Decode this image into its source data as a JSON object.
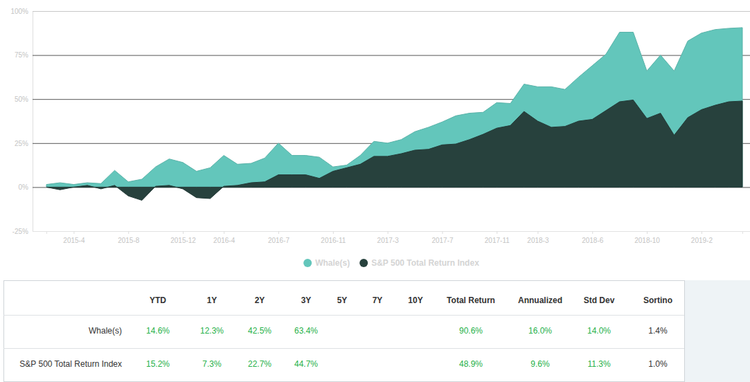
{
  "chart_data": {
    "type": "area",
    "categories": [
      null,
      null,
      "2015-4",
      null,
      null,
      null,
      "2015-8",
      null,
      null,
      null,
      "2015-12",
      null,
      null,
      "2016-4",
      null,
      null,
      null,
      "2016-7",
      null,
      null,
      null,
      "2016-11",
      null,
      null,
      null,
      "2017-3",
      null,
      null,
      null,
      "2017-7",
      null,
      null,
      null,
      "2017-11",
      null,
      null,
      "2018-3",
      null,
      null,
      null,
      "2018-6",
      null,
      null,
      null,
      "2018-10",
      null,
      null,
      null,
      "2019-2",
      null,
      null,
      null
    ],
    "series": [
      {
        "name": "Whale(s)",
        "color": "#63c6bb",
        "values": [
          1.5,
          2.5,
          1.5,
          2.5,
          2,
          9.5,
          3,
          4.5,
          11.5,
          16,
          14,
          9,
          11,
          18,
          13,
          13.5,
          16.5,
          25,
          18,
          18,
          17,
          11.5,
          12.5,
          18,
          26,
          25,
          27,
          31.5,
          34,
          37,
          40.5,
          42,
          42.5,
          48,
          47.5,
          58.5,
          57,
          57,
          55.5,
          62.5,
          69,
          75.5,
          88,
          88,
          66,
          75,
          66,
          83,
          87.5,
          89.5,
          90.2,
          90.6
        ]
      },
      {
        "name": "S&P 500 Total Return Index",
        "color": "#27413d",
        "values": [
          0,
          -1.5,
          0,
          1,
          -1,
          1,
          -5,
          -7.5,
          0.5,
          1,
          -1,
          -6,
          -6.5,
          0.5,
          1,
          2.5,
          3,
          7,
          7,
          7,
          5,
          9,
          11,
          13,
          17.5,
          17.5,
          19,
          21,
          21.5,
          24,
          24.5,
          27,
          30,
          33.5,
          35,
          43,
          37.5,
          34,
          34.5,
          37.5,
          38.5,
          43.5,
          48.5,
          49.5,
          39,
          42,
          29.5,
          39.5,
          44,
          46.5,
          48.5,
          48.9
        ]
      }
    ],
    "ylim": [
      -25,
      100
    ],
    "yticks": [
      {
        "value": -25,
        "label": "-25%"
      },
      {
        "value": 0,
        "label": "0%"
      },
      {
        "value": 25,
        "label": "25%"
      },
      {
        "value": 50,
        "label": "50%"
      },
      {
        "value": 75,
        "label": "75%"
      },
      {
        "value": 100,
        "label": "100%"
      }
    ],
    "grid": true,
    "legend": "bottom"
  },
  "table": {
    "columns": [
      null,
      "YTD",
      "1Y",
      "2Y",
      "3Y",
      "5Y",
      "7Y",
      "10Y",
      "Total Return",
      "Annualized",
      "Std Dev",
      "Sortino"
    ],
    "rows": [
      [
        "Whale(s)",
        "14.6%",
        "12.3%",
        "42.5%",
        "63.4%",
        null,
        null,
        null,
        "90.6%",
        "16.0%",
        "14.0%",
        "1.4%"
      ],
      [
        "S&P 500 Total Return Index",
        "15.2%",
        "7.3%",
        "22.7%",
        "44.7%",
        null,
        null,
        null,
        "48.9%",
        "9.6%",
        "11.3%",
        "1.0%"
      ]
    ]
  }
}
